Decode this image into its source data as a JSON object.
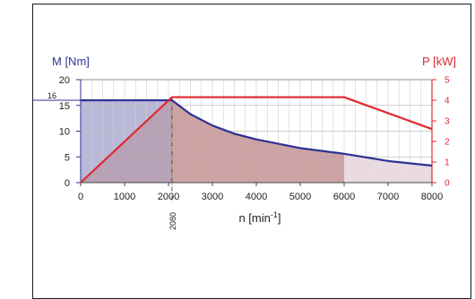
{
  "chart_data": {
    "type": "line",
    "xlabel_base": "n [min",
    "xlabel_exp": "-1",
    "xlabel_tail": "]",
    "left_axis_label": "M [Nm]",
    "right_axis_label": "P [kW]",
    "x_ticks": [
      0,
      1000,
      2000,
      3000,
      4000,
      5000,
      6000,
      7000,
      8000
    ],
    "xlim": [
      0,
      8000
    ],
    "left_ylim": [
      0,
      20
    ],
    "left_ticks": [
      0,
      5,
      10,
      15,
      20
    ],
    "left_extra_tick": {
      "value": 16,
      "label": "16"
    },
    "right_ylim": [
      0,
      5
    ],
    "right_ticks": [
      0,
      1,
      2,
      3,
      4,
      5
    ],
    "corner_annotation": {
      "x": 2080,
      "label": "2080"
    },
    "series": [
      {
        "axis": "left",
        "color": "#2e3192",
        "x": [
          0,
          2080,
          2500,
          3000,
          3500,
          4000,
          5000,
          6000,
          7000,
          8000
        ],
        "y": [
          16,
          16,
          13.3,
          11.1,
          9.5,
          8.4,
          6.7,
          5.6,
          4.2,
          3.3
        ]
      },
      {
        "axis": "right",
        "color": "#e0282e",
        "x": [
          0,
          2080,
          6000,
          8000
        ],
        "y": [
          0,
          4.15,
          4.15,
          2.6
        ]
      }
    ],
    "regions": [
      {
        "from": 0,
        "to": 2080,
        "fill": "#b9b8d8"
      },
      {
        "from": 2080,
        "to": 6000,
        "fill": "#f9cdb2"
      },
      {
        "from": 6000,
        "to": 8000,
        "fill": "#fde9e3"
      }
    ],
    "grid": true
  }
}
